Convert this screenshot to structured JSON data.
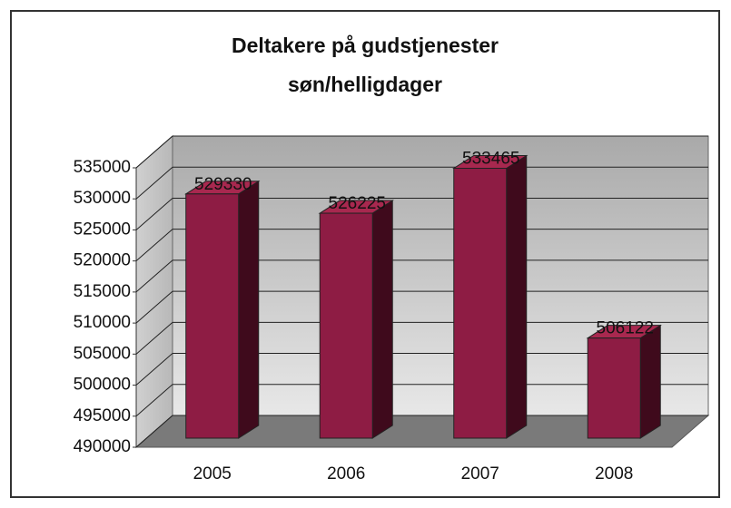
{
  "chart_data": {
    "type": "bar3d",
    "title": "Deltakere på gudstjenester",
    "subtitle": "søn/helligdager",
    "categories": [
      "2005",
      "2006",
      "2007",
      "2008"
    ],
    "values": [
      529330,
      526225,
      533465,
      506122
    ],
    "color": "#8e1c44",
    "ylim": [
      490000,
      535000
    ],
    "yticks": [
      490000,
      495000,
      500000,
      505000,
      510000,
      515000,
      520000,
      525000,
      530000,
      535000
    ],
    "grid": true
  }
}
